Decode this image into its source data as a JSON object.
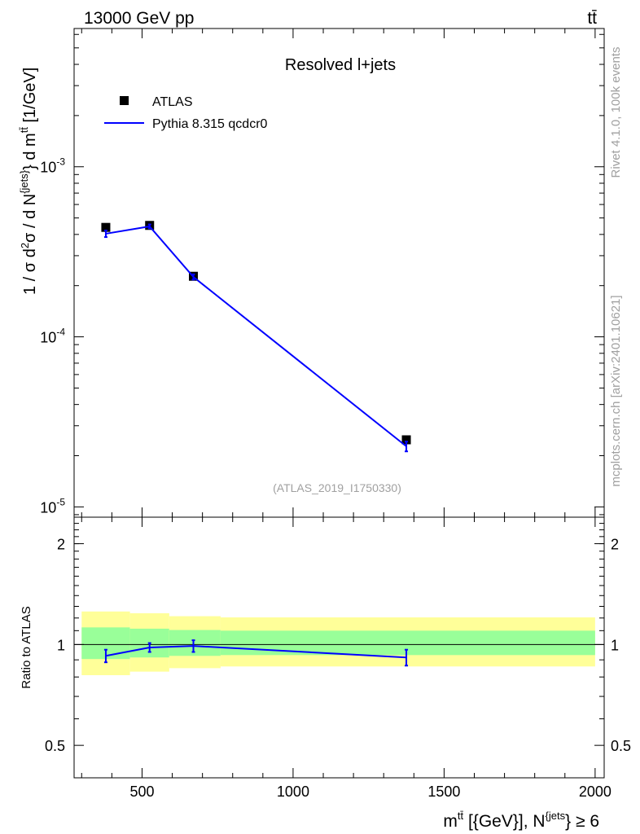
{
  "header": {
    "energy_label": "13000 GeV pp",
    "process_label": "tt̄"
  },
  "side_labels": {
    "rivet": "Rivet 4.1.0,  100k events",
    "mcplots": "mcplots.cern.ch [arXiv:2401.10621]"
  },
  "chart_data": [
    {
      "type": "scatter",
      "panel": "main",
      "title": "Resolved l+jets",
      "analysis_label": "(ATLAS_2019_I1750330)",
      "ylabel": "1 / σ d²σ / d N^{jets} d m^{tt̄} [1/GeV]",
      "yscale": "log",
      "ylim": [
        8.7e-06,
        0.0065
      ],
      "xlim": [
        275,
        2030
      ],
      "ytick_labels": [
        "10^-5",
        "10^-4",
        "10^-3"
      ],
      "legend": [
        {
          "name": "ATLAS",
          "marker": "square",
          "color": "#000000"
        },
        {
          "name": "Pythia 8.315 qcdcr0",
          "marker": "line",
          "color": "#0000ff"
        }
      ],
      "series": [
        {
          "name": "ATLAS",
          "color": "#000000",
          "x": [
            380,
            525,
            670,
            1375
          ],
          "y": [
            0.00044,
            0.000452,
            0.000227,
            2.48e-05
          ]
        },
        {
          "name": "Pythia 8.315 qcdcr0",
          "color": "#0000ff",
          "x": [
            380,
            525,
            670,
            1375
          ],
          "y": [
            0.000404,
            0.000446,
            0.000225,
            2.27e-05
          ],
          "yerr": [
            1.8e-05,
            1.2e-05,
            8e-06,
            1.5e-06
          ]
        }
      ]
    },
    {
      "type": "line",
      "panel": "ratio",
      "ylabel": "Ratio to ATLAS",
      "xlabel": "m^{tt̄} [{GeV}], N^{jets} ≥ 6",
      "yscale": "log",
      "ylim": [
        0.4,
        2.4
      ],
      "xlim": [
        275,
        2030
      ],
      "xticks": [
        500,
        1000,
        1500,
        2000
      ],
      "xtick_labels": [
        "500",
        "1000",
        "1500",
        "2000"
      ],
      "yticks": [
        0.5,
        1,
        2
      ],
      "ytick_labels": [
        "0.5",
        "1",
        "2"
      ],
      "bands": {
        "edges": [
          300,
          460,
          590,
          760,
          2000
        ],
        "inner_low": [
          0.905,
          0.915,
          0.925,
          0.93
        ],
        "inner_high": [
          1.125,
          1.115,
          1.105,
          1.1
        ],
        "outer_low": [
          0.81,
          0.83,
          0.85,
          0.86
        ],
        "outer_high": [
          1.255,
          1.24,
          1.215,
          1.205
        ],
        "inner_color": "#99ff99",
        "outer_color": "#ffff99"
      },
      "series": [
        {
          "name": "Pythia 8.315 qcdcr0",
          "color": "#0000ff",
          "x": [
            380,
            525,
            670,
            1375
          ],
          "y": [
            0.925,
            0.98,
            0.99,
            0.915
          ],
          "yerr": [
            0.04,
            0.03,
            0.04,
            0.05
          ]
        }
      ]
    }
  ]
}
